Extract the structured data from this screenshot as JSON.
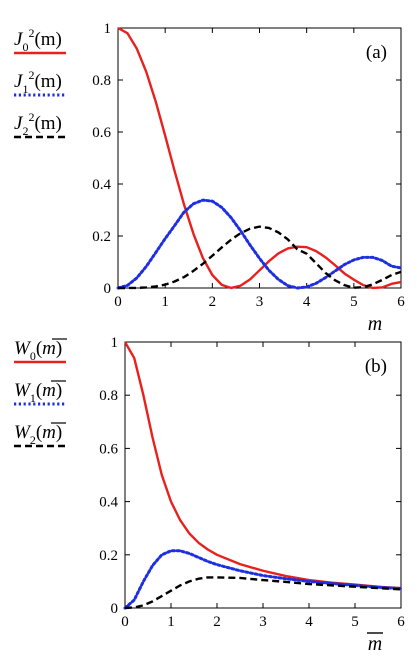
{
  "chart_data": [
    {
      "type": "line",
      "panel_label": "(a)",
      "xlabel": "m",
      "xlim": [
        0,
        6
      ],
      "ylim": [
        0,
        1
      ],
      "x_ticks": [
        "0",
        "1",
        "2",
        "3",
        "4",
        "5",
        "6"
      ],
      "y_ticks": [
        "0",
        "0.2",
        "0.4",
        "0.6",
        "0.8",
        "1"
      ],
      "grid": false,
      "legend_position": "left-outside",
      "series": [
        {
          "name": "J₀²(m)",
          "name_parts": {
            "base": "J",
            "sub": "0",
            "sup": "2",
            "arg": "(m)"
          },
          "color": "#e8201e",
          "style": "solid",
          "x": [
            0,
            0.2,
            0.4,
            0.6,
            0.8,
            1.0,
            1.2,
            1.4,
            1.6,
            1.8,
            2.0,
            2.2,
            2.4,
            2.6,
            2.8,
            3.0,
            3.2,
            3.4,
            3.6,
            3.8,
            4.0,
            4.2,
            4.4,
            4.6,
            4.8,
            5.0,
            5.2,
            5.4,
            5.6,
            5.8,
            6.0
          ],
          "y": [
            1,
            0.98,
            0.92,
            0.831,
            0.717,
            0.586,
            0.45,
            0.321,
            0.208,
            0.115,
            0.05,
            0.012,
            0.0001,
            0.009,
            0.033,
            0.068,
            0.103,
            0.133,
            0.152,
            0.159,
            0.157,
            0.142,
            0.118,
            0.088,
            0.056,
            0.032,
            0.011,
            0.0003,
            0.002,
            0.016,
            0.023
          ]
        },
        {
          "name": "J₁²(m)",
          "name_parts": {
            "base": "J",
            "sub": "1",
            "sup": "2",
            "arg": "(m)"
          },
          "color": "#1d2fe0",
          "style": "dotted",
          "x": [
            0,
            0.2,
            0.4,
            0.6,
            0.8,
            1.0,
            1.2,
            1.4,
            1.6,
            1.8,
            2.0,
            2.2,
            2.4,
            2.6,
            2.8,
            3.0,
            3.2,
            3.4,
            3.6,
            3.8,
            4.0,
            4.2,
            4.4,
            4.6,
            4.8,
            5.0,
            5.2,
            5.4,
            5.6,
            5.8,
            6.0
          ],
          "y": [
            0,
            0.01,
            0.039,
            0.083,
            0.136,
            0.19,
            0.24,
            0.292,
            0.324,
            0.338,
            0.334,
            0.31,
            0.27,
            0.22,
            0.165,
            0.114,
            0.068,
            0.033,
            0.009,
            0.0001,
            0.004,
            0.018,
            0.04,
            0.065,
            0.09,
            0.108,
            0.118,
            0.118,
            0.106,
            0.084,
            0.077
          ]
        },
        {
          "name": "J₂²(m)",
          "name_parts": {
            "base": "J",
            "sub": "2",
            "sup": "2",
            "arg": "(m)"
          },
          "color": "#000000",
          "style": "dashed",
          "x": [
            0,
            0.2,
            0.4,
            0.6,
            0.8,
            1.0,
            1.2,
            1.4,
            1.6,
            1.8,
            2.0,
            2.2,
            2.4,
            2.6,
            2.8,
            3.0,
            3.2,
            3.4,
            3.6,
            3.8,
            4.0,
            4.2,
            4.4,
            4.6,
            4.8,
            5.0,
            5.2,
            5.4,
            5.6,
            5.8,
            6.0
          ],
          "y": [
            0,
            0.0,
            0.0004,
            0.002,
            0.006,
            0.013,
            0.025,
            0.042,
            0.066,
            0.093,
            0.124,
            0.156,
            0.186,
            0.211,
            0.228,
            0.236,
            0.231,
            0.214,
            0.187,
            0.149,
            0.132,
            0.095,
            0.058,
            0.03,
            0.011,
            0.001,
            0.003,
            0.014,
            0.031,
            0.05,
            0.062
          ]
        }
      ]
    },
    {
      "type": "line",
      "panel_label": "(b)",
      "xlabel": "m̄",
      "xlim": [
        0,
        6
      ],
      "ylim": [
        0,
        1
      ],
      "x_ticks": [
        "0",
        "1",
        "2",
        "3",
        "4",
        "5",
        "6"
      ],
      "y_ticks": [
        "0",
        "0.2",
        "0.4",
        "0.6",
        "0.8",
        "1"
      ],
      "grid": false,
      "legend_position": "left-outside",
      "series": [
        {
          "name": "W₀(m̄)",
          "name_parts": {
            "base": "W",
            "sub": "0",
            "sup": "",
            "arg": "m"
          },
          "color": "#e8201e",
          "style": "solid",
          "x": [
            0,
            0.2,
            0.4,
            0.6,
            0.8,
            1.0,
            1.2,
            1.4,
            1.6,
            1.8,
            2.0,
            2.5,
            3.0,
            3.5,
            4.0,
            4.5,
            5.0,
            5.5,
            6.0
          ],
          "y": [
            1,
            0.94,
            0.8,
            0.64,
            0.5,
            0.4,
            0.33,
            0.28,
            0.245,
            0.22,
            0.2,
            0.165,
            0.14,
            0.12,
            0.105,
            0.095,
            0.088,
            0.08,
            0.075
          ]
        },
        {
          "name": "W₁(m̄)",
          "name_parts": {
            "base": "W",
            "sub": "1",
            "sup": "",
            "arg": "m"
          },
          "color": "#1d2fe0",
          "style": "dotted",
          "x": [
            0,
            0.2,
            0.4,
            0.6,
            0.8,
            1.0,
            1.2,
            1.4,
            1.6,
            1.8,
            2.0,
            2.5,
            3.0,
            3.5,
            4.0,
            4.5,
            5.0,
            5.5,
            6.0
          ],
          "y": [
            0,
            0.03,
            0.1,
            0.16,
            0.2,
            0.215,
            0.215,
            0.205,
            0.19,
            0.175,
            0.163,
            0.14,
            0.122,
            0.11,
            0.1,
            0.092,
            0.085,
            0.078,
            0.073
          ]
        },
        {
          "name": "W₂(m̄)",
          "name_parts": {
            "base": "W",
            "sub": "2",
            "sup": "",
            "arg": "m"
          },
          "color": "#000000",
          "style": "dashed",
          "x": [
            0,
            0.2,
            0.4,
            0.6,
            0.8,
            1.0,
            1.2,
            1.4,
            1.6,
            1.8,
            2.0,
            2.5,
            3.0,
            3.5,
            4.0,
            4.5,
            5.0,
            5.5,
            6.0
          ],
          "y": [
            0,
            0.002,
            0.01,
            0.025,
            0.045,
            0.065,
            0.085,
            0.1,
            0.11,
            0.115,
            0.115,
            0.113,
            0.105,
            0.098,
            0.09,
            0.085,
            0.08,
            0.075,
            0.07
          ]
        }
      ]
    }
  ]
}
